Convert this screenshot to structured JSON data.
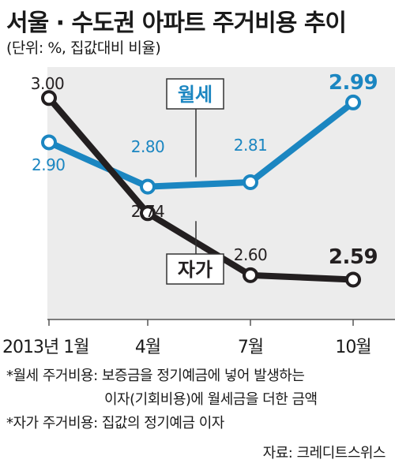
{
  "title": "서울 · 수도권 아파트 주거비용 추이",
  "subtitle": "(단위: %, 집값대비 비율)",
  "chart_data": {
    "type": "line",
    "categories": [
      "2013년 1월",
      "4월",
      "7월",
      "10월"
    ],
    "series": [
      {
        "name": "월세",
        "values": [
          2.9,
          2.8,
          2.81,
          2.99
        ],
        "labels": [
          "2.90",
          "2.80",
          "2.81",
          "2.99"
        ],
        "color": "#1b86c1"
      },
      {
        "name": "자가",
        "values": [
          3.0,
          2.74,
          2.6,
          2.59
        ],
        "labels": [
          "3.00",
          "2.74",
          "2.60",
          "2.59"
        ],
        "color": "#231f20"
      }
    ],
    "ylim": [
      2.5,
      3.07
    ],
    "grid": false,
    "legend": "inline labels"
  },
  "notes": [
    "*월세 주거비용: 보증금을 정기예금에 넣어 발생하는",
    "이자(기회비용)에 월세금을 더한 금액",
    "*자가 주거비용: 집값의 정기예금 이자"
  ],
  "source": "자료: 크레디트스위스"
}
